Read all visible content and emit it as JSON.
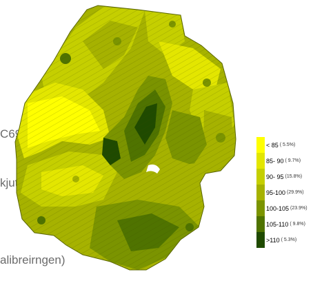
{
  "side_texts": [
    "C69",
    "kjutning 30%)",
    "alibreirngen)"
  ],
  "legend": {
    "items": [
      {
        "label": "< 85",
        "pct": "( 5.5%)",
        "color": "#ffff00"
      },
      {
        "label": "85- 90",
        "pct": "( 9.7%)",
        "color": "#e3e600"
      },
      {
        "label": "90- 95",
        "pct": "(15.8%)",
        "color": "#c5cf00"
      },
      {
        "label": "95-100",
        "pct": "(29.9%)",
        "color": "#a6b200"
      },
      {
        "label": "100-105",
        "pct": "(23.9%)",
        "color": "#7b9400"
      },
      {
        "label": "105-110",
        "pct": "( 9.8%)",
        "color": "#4f7300"
      },
      {
        "label": ">110",
        "pct": "( 5.3%)",
        "color": "#1f4a00"
      }
    ]
  },
  "colors": {
    "text_gray": "#6b6b6b"
  }
}
